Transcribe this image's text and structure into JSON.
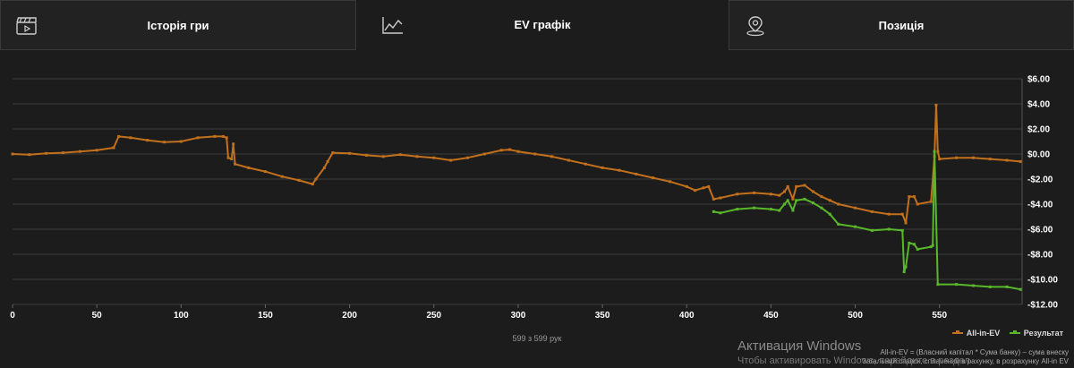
{
  "tabs": [
    {
      "label": "Історія гри",
      "icon": "clapperboard-icon",
      "active": false
    },
    {
      "label": "EV графік",
      "icon": "line-chart-icon",
      "active": true
    },
    {
      "label": "Позиція",
      "icon": "map-pin-icon",
      "active": false
    }
  ],
  "hands_count": "599 з 599 рук",
  "legend": {
    "ev_label": "All-in-EV",
    "result_label": "Результат"
  },
  "footnote": "All-in-EV = (Власний капітал * Сума банку) – сума внеску",
  "footnote2": "Загальний ставок, сплачений в рахунку, в розрахунку All-in EV",
  "windows_watermark": {
    "title": "Активация Windows",
    "subtitle": "Чтобы активировать Windows, перейдите в раздел"
  },
  "colors": {
    "ev": "#c2701c",
    "result": "#58b82a",
    "grid": "#3d3d3d",
    "text": "#ffffff"
  },
  "chart_data": {
    "type": "line",
    "xlim": [
      0,
      599
    ],
    "ylim": [
      -12,
      6
    ],
    "xticks": [
      0,
      50,
      100,
      150,
      200,
      250,
      300,
      350,
      400,
      450,
      500,
      550
    ],
    "yticks": [
      6,
      4,
      2,
      0,
      -2,
      -4,
      -6,
      -8,
      -10,
      -12
    ],
    "ytick_labels": [
      "$6.00",
      "$4.00",
      "$2.00",
      "$0.00",
      "-$2.00",
      "-$4.00",
      "-$6.00",
      "-$8.00",
      "-$10.00",
      "-$12.00"
    ],
    "series": [
      {
        "name": "All-in-EV",
        "points": [
          [
            0,
            0
          ],
          [
            10,
            -0.05
          ],
          [
            20,
            0.05
          ],
          [
            30,
            0.1
          ],
          [
            40,
            0.2
          ],
          [
            50,
            0.3
          ],
          [
            60,
            0.5
          ],
          [
            63,
            1.4
          ],
          [
            70,
            1.3
          ],
          [
            80,
            1.1
          ],
          [
            90,
            0.95
          ],
          [
            100,
            1.0
          ],
          [
            110,
            1.3
          ],
          [
            120,
            1.4
          ],
          [
            125,
            1.4
          ],
          [
            127,
            1.3
          ],
          [
            128,
            -0.3
          ],
          [
            130,
            -0.4
          ],
          [
            131,
            0.8
          ],
          [
            132,
            -0.8
          ],
          [
            140,
            -1.1
          ],
          [
            150,
            -1.4
          ],
          [
            160,
            -1.8
          ],
          [
            170,
            -2.1
          ],
          [
            178,
            -2.4
          ],
          [
            180,
            -2.0
          ],
          [
            185,
            -1.1
          ],
          [
            187,
            -0.6
          ],
          [
            190,
            0.1
          ],
          [
            200,
            0.05
          ],
          [
            210,
            -0.1
          ],
          [
            220,
            -0.2
          ],
          [
            230,
            -0.05
          ],
          [
            240,
            -0.2
          ],
          [
            250,
            -0.3
          ],
          [
            260,
            -0.5
          ],
          [
            270,
            -0.3
          ],
          [
            280,
            0.0
          ],
          [
            290,
            0.3
          ],
          [
            295,
            0.35
          ],
          [
            300,
            0.2
          ],
          [
            310,
            0.0
          ],
          [
            320,
            -0.2
          ],
          [
            330,
            -0.5
          ],
          [
            340,
            -0.8
          ],
          [
            350,
            -1.1
          ],
          [
            360,
            -1.3
          ],
          [
            370,
            -1.6
          ],
          [
            380,
            -1.9
          ],
          [
            390,
            -2.2
          ],
          [
            400,
            -2.6
          ],
          [
            405,
            -2.9
          ],
          [
            410,
            -2.7
          ],
          [
            413,
            -2.6
          ],
          [
            416,
            -3.6
          ],
          [
            420,
            -3.5
          ],
          [
            430,
            -3.2
          ],
          [
            440,
            -3.1
          ],
          [
            450,
            -3.2
          ],
          [
            455,
            -3.3
          ],
          [
            458,
            -3.0
          ],
          [
            460,
            -2.6
          ],
          [
            463,
            -3.6
          ],
          [
            465,
            -2.6
          ],
          [
            470,
            -2.5
          ],
          [
            475,
            -3.0
          ],
          [
            480,
            -3.4
          ],
          [
            485,
            -3.7
          ],
          [
            490,
            -4.0
          ],
          [
            500,
            -4.3
          ],
          [
            510,
            -4.6
          ],
          [
            520,
            -4.8
          ],
          [
            528,
            -4.8
          ],
          [
            530,
            -5.5
          ],
          [
            532,
            -3.4
          ],
          [
            535,
            -3.4
          ],
          [
            537,
            -4.0
          ],
          [
            545,
            -3.8
          ],
          [
            547,
            -0.2
          ],
          [
            548,
            3.9
          ],
          [
            549,
            0.2
          ],
          [
            550,
            -0.4
          ],
          [
            560,
            -0.3
          ],
          [
            570,
            -0.3
          ],
          [
            580,
            -0.4
          ],
          [
            590,
            -0.5
          ],
          [
            598,
            -0.6
          ]
        ]
      },
      {
        "name": "Результат",
        "points": [
          [
            416,
            -4.6
          ],
          [
            420,
            -4.7
          ],
          [
            430,
            -4.4
          ],
          [
            440,
            -4.3
          ],
          [
            450,
            -4.4
          ],
          [
            455,
            -4.5
          ],
          [
            458,
            -4.0
          ],
          [
            460,
            -3.7
          ],
          [
            463,
            -4.5
          ],
          [
            465,
            -3.7
          ],
          [
            470,
            -3.6
          ],
          [
            475,
            -3.9
          ],
          [
            480,
            -4.3
          ],
          [
            485,
            -4.8
          ],
          [
            490,
            -5.6
          ],
          [
            500,
            -5.8
          ],
          [
            510,
            -6.1
          ],
          [
            520,
            -6.0
          ],
          [
            528,
            -6.1
          ],
          [
            529,
            -9.4
          ],
          [
            530,
            -9.0
          ],
          [
            532,
            -7.1
          ],
          [
            535,
            -7.2
          ],
          [
            537,
            -7.6
          ],
          [
            545,
            -7.4
          ],
          [
            546,
            -7.3
          ],
          [
            547,
            0.2
          ],
          [
            549,
            -10.4
          ],
          [
            560,
            -10.4
          ],
          [
            570,
            -10.5
          ],
          [
            580,
            -10.6
          ],
          [
            590,
            -10.6
          ],
          [
            598,
            -10.8
          ]
        ]
      }
    ]
  }
}
